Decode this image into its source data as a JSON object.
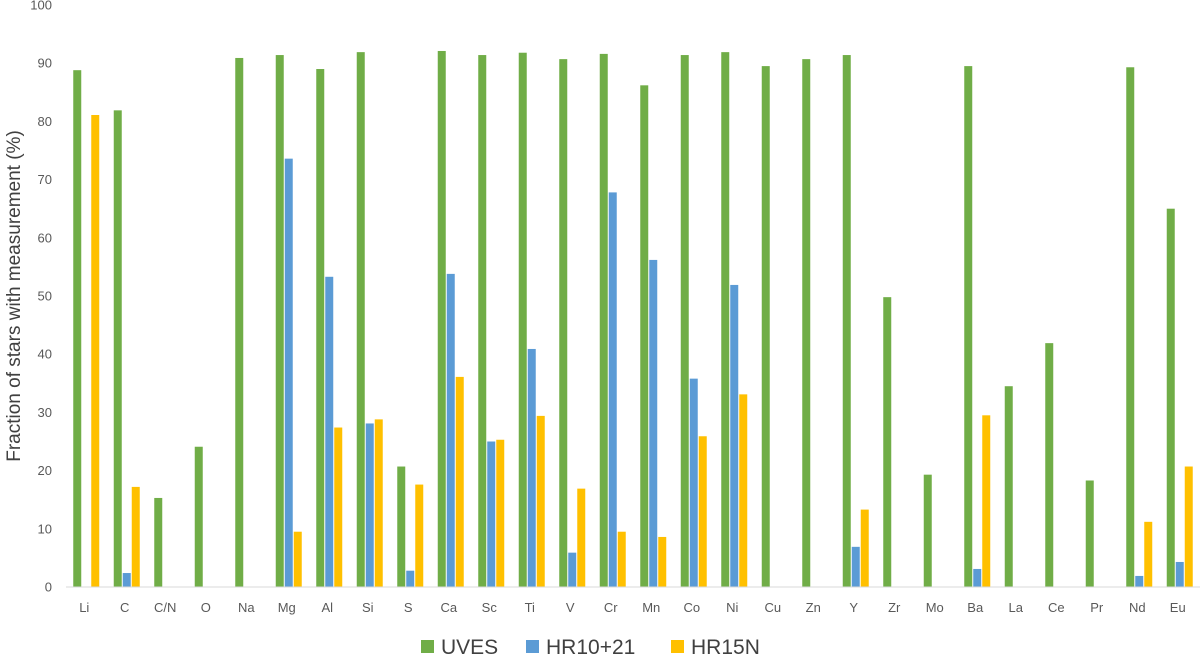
{
  "chart_data": {
    "type": "bar",
    "title": "",
    "xlabel": "",
    "ylabel": "Fraction of stars with measurement (%)",
    "ylim": [
      0,
      100
    ],
    "yticks": [
      0,
      10,
      20,
      30,
      40,
      50,
      60,
      70,
      80,
      90,
      100
    ],
    "grid": false,
    "legend_position": "bottom",
    "categories": [
      "Li",
      "C",
      "C/N",
      "O",
      "Na",
      "Mg",
      "Al",
      "Si",
      "S",
      "Ca",
      "Sc",
      "Ti",
      "V",
      "Cr",
      "Mn",
      "Co",
      "Ni",
      "Cu",
      "Zn",
      "Y",
      "Zr",
      "Mo",
      "Ba",
      "La",
      "Ce",
      "Pr",
      "Nd",
      "Eu"
    ],
    "series": [
      {
        "name": "UVES",
        "color": "#70ad47",
        "values": [
          88.8,
          81.9,
          15.3,
          24.1,
          90.9,
          91.4,
          89.0,
          91.9,
          20.7,
          92.1,
          91.4,
          91.8,
          90.7,
          91.6,
          86.2,
          91.4,
          91.9,
          89.5,
          90.7,
          91.4,
          49.8,
          19.3,
          89.5,
          34.5,
          41.9,
          18.3,
          89.3,
          65.0
        ]
      },
      {
        "name": "HR10+21",
        "color": "#5b9bd5",
        "values": [
          0,
          2.4,
          0,
          0,
          0,
          73.6,
          53.3,
          28.1,
          2.8,
          53.8,
          25.0,
          40.9,
          5.9,
          67.8,
          56.2,
          35.8,
          51.9,
          0,
          0,
          6.9,
          0,
          0,
          3.1,
          0,
          0,
          0,
          1.9,
          4.3
        ]
      },
      {
        "name": "HR15N",
        "color": "#ffc000",
        "values": [
          81.1,
          17.2,
          0,
          0,
          0,
          9.5,
          27.4,
          28.8,
          17.6,
          36.1,
          25.3,
          29.4,
          16.9,
          9.5,
          8.6,
          25.9,
          33.1,
          0,
          0,
          13.3,
          0,
          0,
          29.5,
          0,
          0,
          0,
          11.2,
          20.7
        ]
      }
    ]
  }
}
